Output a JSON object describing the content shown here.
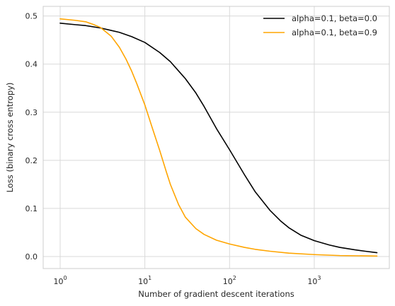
{
  "chart_data": {
    "type": "line",
    "xlabel": "Number of gradient descent iterations",
    "ylabel": "Loss (binary cross entropy)",
    "xscale": "log",
    "xlim": [
      0.63,
      7700
    ],
    "ylim": [
      -0.025,
      0.52
    ],
    "grid": true,
    "legend_position": "top-right",
    "x_ticks": [
      {
        "base": "10",
        "exp": "0",
        "value": 1
      },
      {
        "base": "10",
        "exp": "1",
        "value": 10
      },
      {
        "base": "10",
        "exp": "2",
        "value": 100
      },
      {
        "base": "10",
        "exp": "3",
        "value": 1000
      }
    ],
    "y_ticks": [
      {
        "label": "0.0",
        "value": 0.0
      },
      {
        "label": "0.1",
        "value": 0.1
      },
      {
        "label": "0.2",
        "value": 0.2
      },
      {
        "label": "0.3",
        "value": 0.3
      },
      {
        "label": "0.4",
        "value": 0.4
      },
      {
        "label": "0.5",
        "value": 0.5
      }
    ],
    "series": [
      {
        "name": "alpha=0.1, beta=0.0",
        "color": "#000000",
        "points": [
          [
            1,
            0.485
          ],
          [
            1.5,
            0.482
          ],
          [
            2,
            0.48
          ],
          [
            3,
            0.475
          ],
          [
            4,
            0.47
          ],
          [
            5,
            0.466
          ],
          [
            7,
            0.457
          ],
          [
            10,
            0.445
          ],
          [
            15,
            0.424
          ],
          [
            20,
            0.405
          ],
          [
            30,
            0.37
          ],
          [
            40,
            0.34
          ],
          [
            50,
            0.312
          ],
          [
            70,
            0.266
          ],
          [
            100,
            0.222
          ],
          [
            150,
            0.17
          ],
          [
            200,
            0.135
          ],
          [
            300,
            0.096
          ],
          [
            400,
            0.074
          ],
          [
            500,
            0.06
          ],
          [
            700,
            0.044
          ],
          [
            1000,
            0.033
          ],
          [
            1500,
            0.024
          ],
          [
            2000,
            0.019
          ],
          [
            3000,
            0.014
          ],
          [
            4000,
            0.011
          ],
          [
            5500,
            0.008
          ]
        ]
      },
      {
        "name": "alpha=0.1, beta=0.9",
        "color": "#ffa500",
        "points": [
          [
            1,
            0.494
          ],
          [
            1.5,
            0.491
          ],
          [
            2,
            0.488
          ],
          [
            2.5,
            0.482
          ],
          [
            3,
            0.476
          ],
          [
            4,
            0.458
          ],
          [
            5,
            0.435
          ],
          [
            6,
            0.41
          ],
          [
            7,
            0.385
          ],
          [
            8,
            0.36
          ],
          [
            10,
            0.315
          ],
          [
            12,
            0.272
          ],
          [
            15,
            0.22
          ],
          [
            18,
            0.175
          ],
          [
            20,
            0.15
          ],
          [
            25,
            0.108
          ],
          [
            30,
            0.082
          ],
          [
            40,
            0.058
          ],
          [
            50,
            0.046
          ],
          [
            70,
            0.034
          ],
          [
            100,
            0.026
          ],
          [
            150,
            0.019
          ],
          [
            200,
            0.015
          ],
          [
            300,
            0.011
          ],
          [
            500,
            0.007
          ],
          [
            1000,
            0.004
          ],
          [
            2000,
            0.002
          ],
          [
            5500,
            0.001
          ]
        ]
      }
    ]
  }
}
